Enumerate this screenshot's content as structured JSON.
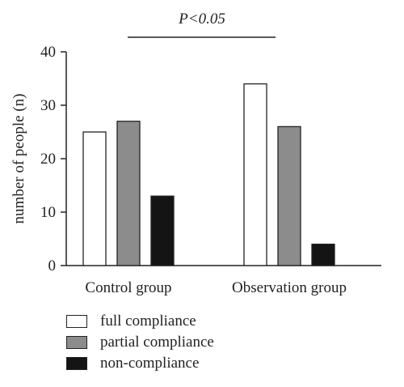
{
  "chart_data": {
    "type": "bar",
    "title": "",
    "xlabel": "",
    "ylabel": "number of people (n)",
    "ylim": [
      0,
      40
    ],
    "yticks": [
      0,
      10,
      20,
      30,
      40
    ],
    "categories": [
      "Control group",
      "Observation group"
    ],
    "series": [
      {
        "name": "full compliance",
        "values": [
          25,
          34
        ],
        "color": "#ffffff"
      },
      {
        "name": "partial compliance",
        "values": [
          27,
          26
        ],
        "color": "#8c8c8c"
      },
      {
        "name": "non-compliance",
        "values": [
          13,
          4
        ],
        "color": "#141414"
      }
    ],
    "annotation": "P<0.05",
    "grid": false,
    "legend_position": "bottom-left"
  }
}
